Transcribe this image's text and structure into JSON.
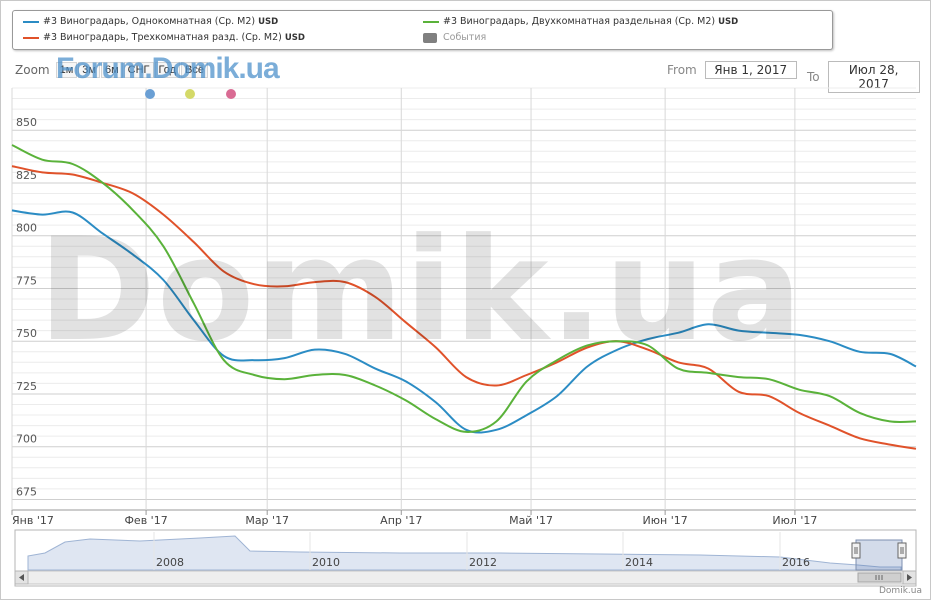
{
  "legend": {
    "items": [
      {
        "label": "#3 Виноградарь, Однокомнатная (Ср. М2)",
        "unit": "USD",
        "color": "#2b8cc4"
      },
      {
        "label": "#3 Виноградарь, Трехкомнатная разд. (Ср. М2)",
        "unit": "USD",
        "color": "#e0522a"
      },
      {
        "label": "#3 Виноградарь, Двухкомнатная раздельная (Ср. М2)",
        "unit": "USD",
        "color": "#5ab23a"
      },
      {
        "label": "События",
        "unit": "",
        "color": "#808080"
      }
    ]
  },
  "zoom": {
    "label": "Zoom",
    "buttons": [
      "1м",
      "3м",
      "6м",
      "СНГ",
      "Год",
      "Всё"
    ]
  },
  "logo_text": "Forum.Domik.ua",
  "range": {
    "from_label": "From",
    "from_value": "Янв 1, 2017",
    "to_label": "To",
    "to_value": "Июл 28, 2017"
  },
  "watermark": "Domik.ua",
  "credit": "Domik.ua",
  "event_dot_colors": [
    "#6a9fd4",
    "#d4d968",
    "#d96b93"
  ],
  "chart_data": {
    "type": "line",
    "ylim": [
      670,
      870
    ],
    "yticks": [
      675,
      700,
      725,
      750,
      775,
      800,
      825,
      850
    ],
    "xdomain": [
      0,
      209
    ],
    "xticks": [
      {
        "label": "Янв '17",
        "day": 0
      },
      {
        "label": "Фев '17",
        "day": 31
      },
      {
        "label": "Мар '17",
        "day": 59
      },
      {
        "label": "Апр '17",
        "day": 90
      },
      {
        "label": "Май '17",
        "day": 120
      },
      {
        "label": "Июн '17",
        "day": 151
      },
      {
        "label": "Июл '17",
        "day": 181
      }
    ],
    "x": [
      0,
      7,
      14,
      21,
      28,
      35,
      42,
      49,
      56,
      63,
      70,
      77,
      84,
      91,
      98,
      105,
      112,
      119,
      126,
      133,
      140,
      147,
      154,
      161,
      168,
      175,
      182,
      189,
      196,
      203,
      209
    ],
    "series": [
      {
        "name": "#3 Виноградарь, Однокомнатная (Ср. М2)",
        "color": "#2b8cc4",
        "values": [
          812,
          810,
          811,
          801,
          791,
          779,
          760,
          743,
          741,
          742,
          746,
          744,
          737,
          731,
          721,
          708,
          708,
          715,
          724,
          738,
          746,
          751,
          754,
          758,
          755,
          754,
          753,
          750,
          745,
          744,
          738
        ]
      },
      {
        "name": "#3 Виноградарь, Трехкомнатная разд. (Ср. М2)",
        "color": "#e0522a",
        "values": [
          833,
          830,
          829,
          825,
          820,
          810,
          797,
          783,
          777,
          776,
          778,
          778,
          771,
          759,
          747,
          733,
          729,
          734,
          740,
          747,
          750,
          746,
          740,
          737,
          726,
          724,
          716,
          710,
          704,
          701,
          699
        ]
      },
      {
        "name": "#3 Виноградарь, Двухкомнатная раздельная (Ср. М2)",
        "color": "#5ab23a",
        "values": [
          843,
          836,
          834,
          825,
          812,
          795,
          768,
          741,
          734,
          732,
          734,
          734,
          729,
          722,
          713,
          707,
          712,
          731,
          741,
          748,
          750,
          748,
          737,
          735,
          733,
          732,
          727,
          724,
          716,
          712,
          712
        ]
      }
    ],
    "navigator": {
      "year_labels": [
        "2008",
        "2010",
        "2012",
        "2014",
        "2016"
      ]
    }
  }
}
